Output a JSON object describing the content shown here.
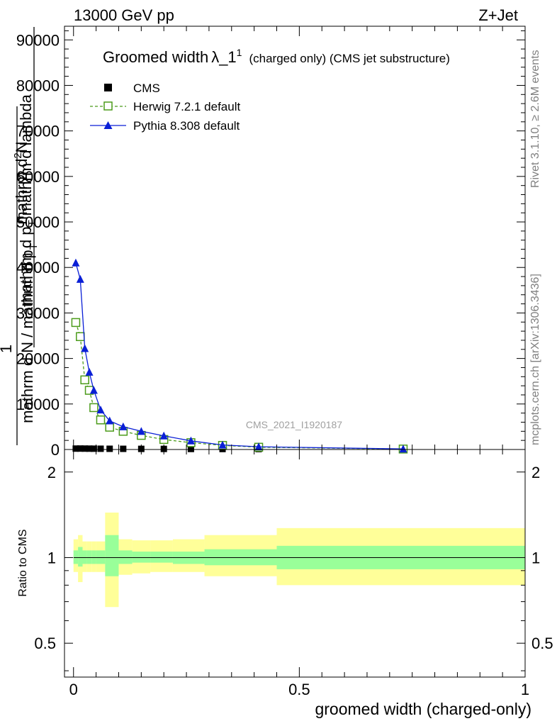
{
  "header": {
    "left": "13000 GeV pp",
    "right": "Z+Jet"
  },
  "side_text": {
    "top": "Rivet 3.1.10, ≥ 2.6M events",
    "bottom": "mcplots.cern.ch [arXiv:1306.3436]"
  },
  "watermark": "CMS_2021_I1920187",
  "chart_data": [
    {
      "type": "line",
      "title_main": "Groomed width",
      "title_lambda": "λ_1",
      "title_sup": "1",
      "title_rest": "(charged only) (CMS jet substructure)",
      "ylabel": {
        "one": "1",
        "numer": "mathrm d",
        "numer_tail": "N",
        "denom": "mathrm d N / mathrm d p",
        "denom_sub": "T",
        "main": "mathrm d",
        "main_sup": "2",
        "main_tail": "N",
        "over": "mathrm d p",
        "over_sub": "T",
        "over_tail": "mathrm d lambda"
      },
      "ylim": [
        0,
        93000
      ],
      "yticks": [
        0,
        10000,
        20000,
        30000,
        40000,
        50000,
        60000,
        70000,
        80000,
        90000
      ],
      "yticklabels": [
        "0",
        "10000",
        "20000",
        "30000",
        "40000",
        "50000",
        "60000",
        "70000",
        "80000",
        "90000"
      ],
      "xlim": [
        -0.02,
        1.0
      ],
      "legend_position": "top-left",
      "series": [
        {
          "name": "CMS",
          "color": "#000000",
          "marker": "square-filled",
          "x": [
            0.005,
            0.015,
            0.025,
            0.035,
            0.045,
            0.06,
            0.08,
            0.11,
            0.15,
            0.2,
            0.26,
            0.33,
            0.41,
            0.73
          ],
          "y": [
            120,
            130,
            120,
            110,
            100,
            90,
            80,
            70,
            60,
            50,
            40,
            30,
            20,
            5
          ]
        },
        {
          "name": "Herwig 7.2.1 default",
          "color": "#4b9b1a",
          "marker": "square-open",
          "dashed": true,
          "x": [
            0.005,
            0.015,
            0.025,
            0.035,
            0.045,
            0.06,
            0.08,
            0.11,
            0.15,
            0.2,
            0.26,
            0.33,
            0.41,
            0.73
          ],
          "y": [
            27900,
            24800,
            15300,
            13000,
            9200,
            6500,
            4900,
            4000,
            3100,
            2200,
            1500,
            900,
            500,
            100
          ]
        },
        {
          "name": "Pythia 8.308 default",
          "color": "#0a1fd6",
          "marker": "triangle-filled",
          "x": [
            0.005,
            0.015,
            0.025,
            0.035,
            0.045,
            0.06,
            0.08,
            0.11,
            0.15,
            0.2,
            0.26,
            0.33,
            0.41,
            0.73
          ],
          "y": [
            41000,
            37400,
            22200,
            17000,
            13000,
            8700,
            6300,
            5000,
            4000,
            3000,
            1900,
            1000,
            600,
            120
          ]
        }
      ]
    },
    {
      "type": "area",
      "ylabel": "Ratio to CMS",
      "xlabel": "groomed width (charged-only)",
      "ylim": [
        0.38,
        2.4
      ],
      "log_y": true,
      "yticks": [
        0.5,
        1,
        2
      ],
      "yticklabels": [
        "0.5",
        "1",
        "2"
      ],
      "xlim": [
        -0.02,
        1.0
      ],
      "xticks": [
        0,
        0.5,
        1
      ],
      "xticklabels": [
        "0",
        "0.5",
        "1"
      ],
      "reference_line": 1,
      "bands": {
        "inner_color": "#99ff99",
        "outer_color": "#ffff99",
        "bins": [
          {
            "lo": 0.0,
            "hi": 0.01,
            "in_lo": 0.95,
            "in_hi": 1.06,
            "out_lo": 0.89,
            "out_hi": 1.16
          },
          {
            "lo": 0.01,
            "hi": 0.02,
            "in_lo": 0.93,
            "in_hi": 1.09,
            "out_lo": 0.82,
            "out_hi": 1.2
          },
          {
            "lo": 0.02,
            "hi": 0.03,
            "in_lo": 0.95,
            "in_hi": 1.06,
            "out_lo": 0.89,
            "out_hi": 1.14
          },
          {
            "lo": 0.03,
            "hi": 0.04,
            "in_lo": 0.95,
            "in_hi": 1.06,
            "out_lo": 0.89,
            "out_hi": 1.14
          },
          {
            "lo": 0.04,
            "hi": 0.05,
            "in_lo": 0.95,
            "in_hi": 1.06,
            "out_lo": 0.89,
            "out_hi": 1.14
          },
          {
            "lo": 0.05,
            "hi": 0.07,
            "in_lo": 0.95,
            "in_hi": 1.06,
            "out_lo": 0.89,
            "out_hi": 1.14
          },
          {
            "lo": 0.07,
            "hi": 0.1,
            "in_lo": 0.86,
            "in_hi": 1.2,
            "out_lo": 0.67,
            "out_hi": 1.44
          },
          {
            "lo": 0.1,
            "hi": 0.13,
            "in_lo": 0.95,
            "in_hi": 1.06,
            "out_lo": 0.87,
            "out_hi": 1.16
          },
          {
            "lo": 0.13,
            "hi": 0.17,
            "in_lo": 0.96,
            "in_hi": 1.05,
            "out_lo": 0.88,
            "out_hi": 1.15
          },
          {
            "lo": 0.17,
            "hi": 0.22,
            "in_lo": 0.96,
            "in_hi": 1.05,
            "out_lo": 0.89,
            "out_hi": 1.15
          },
          {
            "lo": 0.22,
            "hi": 0.29,
            "in_lo": 0.95,
            "in_hi": 1.05,
            "out_lo": 0.89,
            "out_hi": 1.16
          },
          {
            "lo": 0.29,
            "hi": 0.45,
            "in_lo": 0.94,
            "in_hi": 1.07,
            "out_lo": 0.86,
            "out_hi": 1.2
          },
          {
            "lo": 0.45,
            "hi": 1.0,
            "in_lo": 0.91,
            "in_hi": 1.1,
            "out_lo": 0.8,
            "out_hi": 1.27
          }
        ]
      }
    }
  ]
}
